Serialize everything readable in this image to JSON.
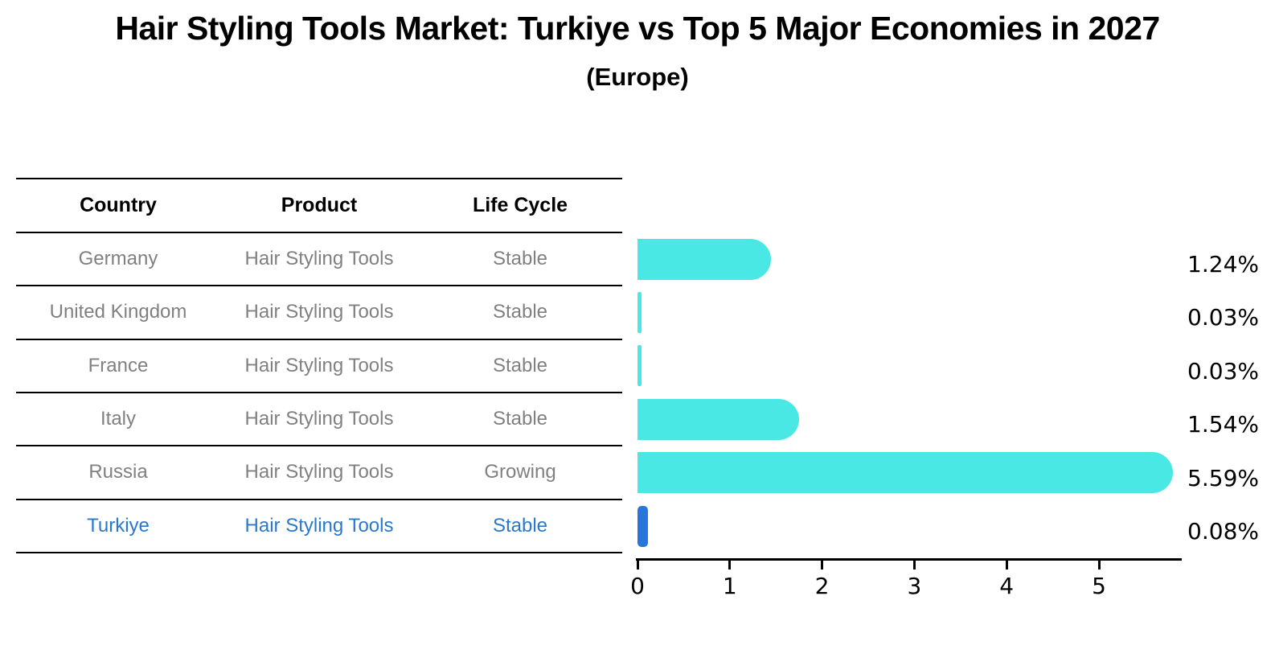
{
  "title": "Hair Styling Tools Market: Turkiye vs Top 5 Major Economies in 2027",
  "subtitle": "(Europe)",
  "colors": {
    "bar": "#4AE8E4",
    "highlight_bar": "#2577DC",
    "highlight_text": "#2A78CE",
    "row_text": "#808080",
    "header_text": "#000000",
    "axis": "#000000",
    "background": "#ffffff"
  },
  "table": {
    "headers": [
      "Country",
      "Product",
      "Life Cycle"
    ],
    "rows": [
      {
        "country": "Germany",
        "product": "Hair Styling Tools",
        "life_cycle": "Stable",
        "highlight": false
      },
      {
        "country": "United Kingdom",
        "product": "Hair Styling Tools",
        "life_cycle": "Stable",
        "highlight": false
      },
      {
        "country": "France",
        "product": "Hair Styling Tools",
        "life_cycle": "Stable",
        "highlight": false
      },
      {
        "country": "Italy",
        "product": "Hair Styling Tools",
        "life_cycle": "Stable",
        "highlight": false
      },
      {
        "country": "Russia",
        "product": "Hair Styling Tools",
        "life_cycle": "Growing",
        "highlight": false
      },
      {
        "country": "Turkiye",
        "product": "Hair Styling Tools",
        "life_cycle": "Stable",
        "highlight": true
      }
    ]
  },
  "chart_data": {
    "type": "bar",
    "orientation": "horizontal",
    "title": "Hair Styling Tools Market: Turkiye vs Top 5 Major Economies in 2027",
    "subtitle": "(Europe)",
    "categories": [
      "Germany",
      "United Kingdom",
      "France",
      "Italy",
      "Russia",
      "Turkiye"
    ],
    "values": [
      1.24,
      0.03,
      0.03,
      1.54,
      5.59,
      0.08
    ],
    "value_labels": [
      "1.24%",
      "0.03%",
      "0.03%",
      "1.54%",
      "5.59%",
      "0.08%"
    ],
    "highlight_index": 5,
    "xlabel": "",
    "ylabel": "",
    "xticks": [
      0,
      1,
      2,
      3,
      4,
      5
    ],
    "xlim": [
      0,
      5.9
    ],
    "grid": false,
    "legend": null
  }
}
